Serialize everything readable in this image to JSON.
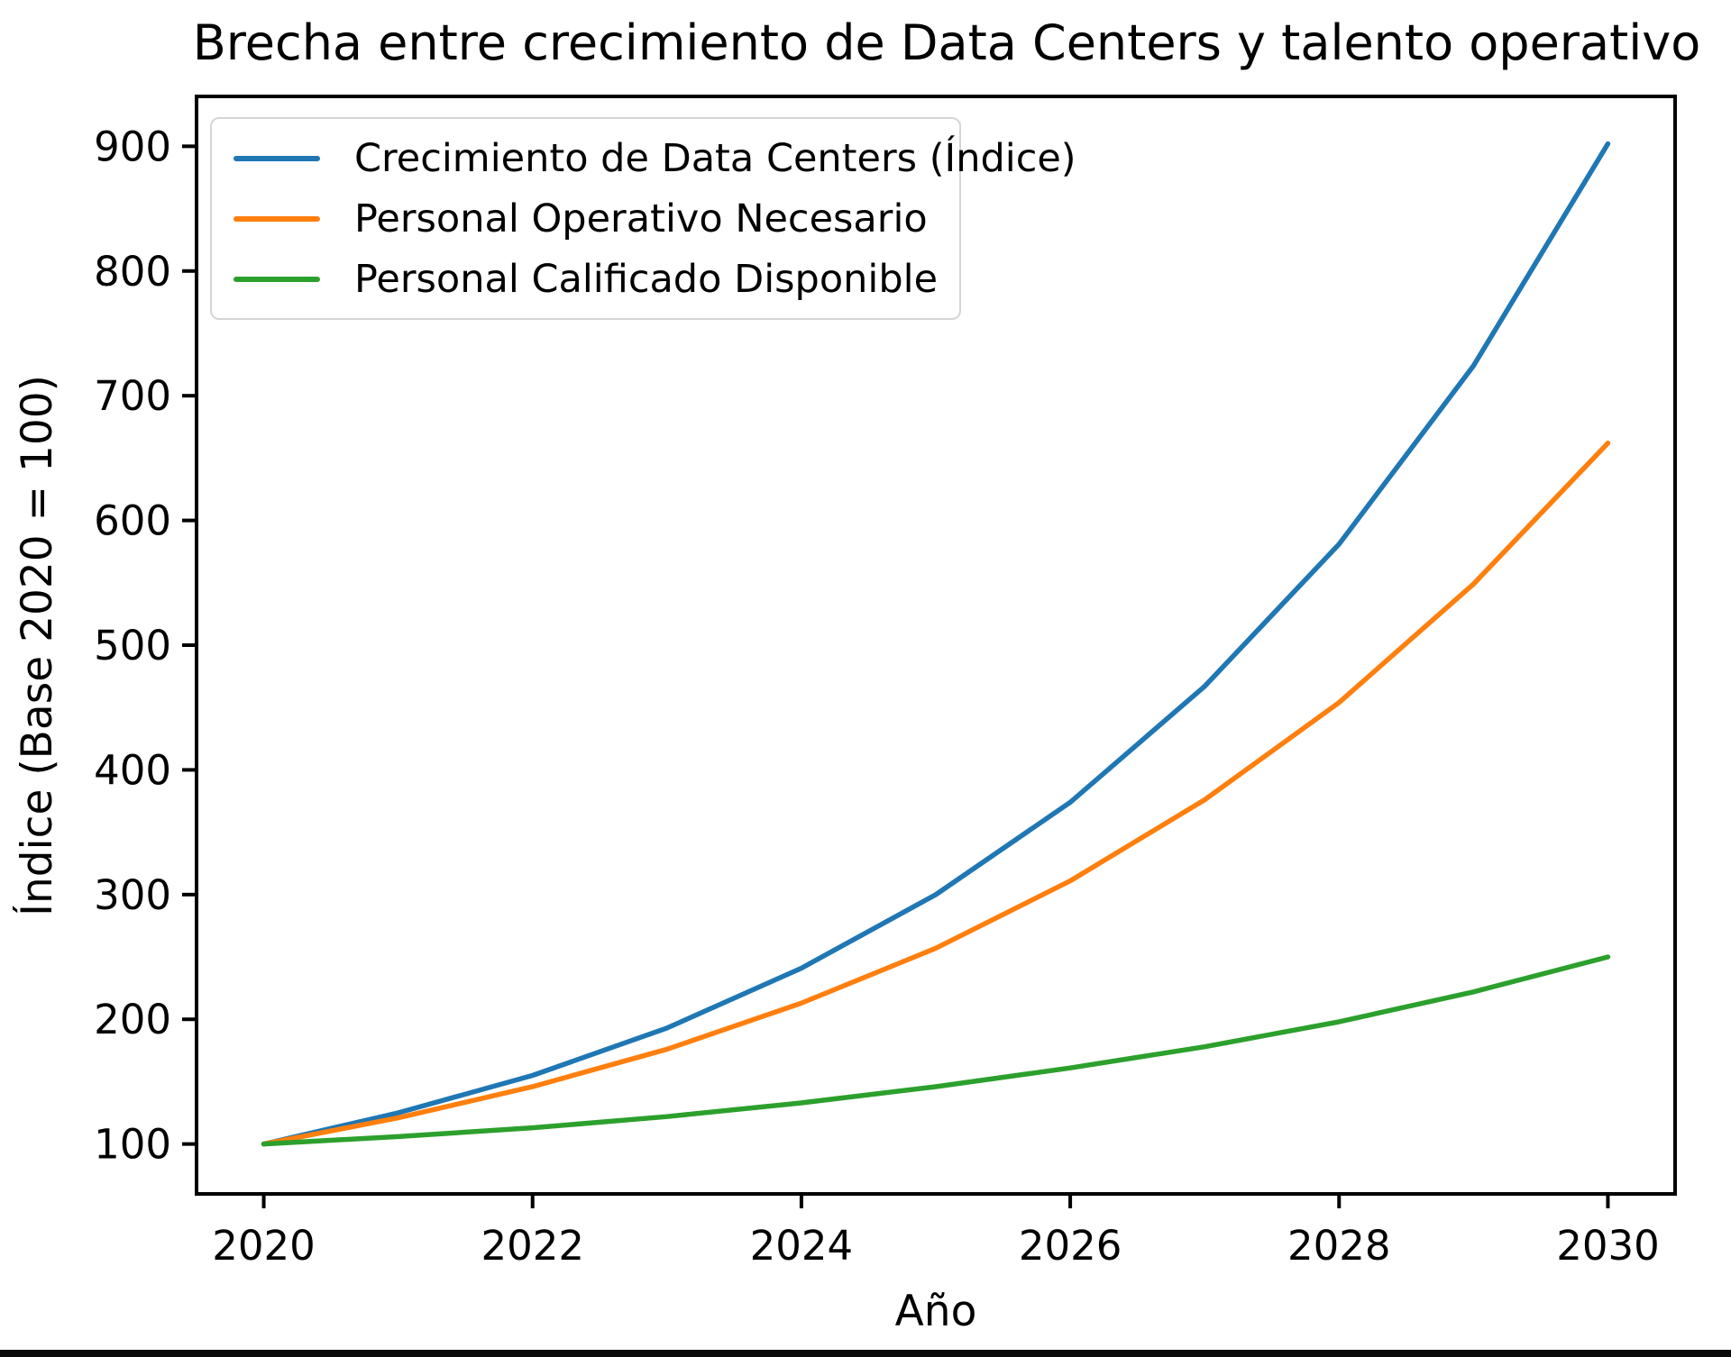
{
  "chart_data": {
    "type": "line",
    "title": "Brecha entre crecimiento de Data Centers y talento operativo",
    "xlabel": "Año",
    "ylabel": "Índice (Base 2020 = 100)",
    "x": [
      2020,
      2021,
      2022,
      2023,
      2024,
      2025,
      2026,
      2027,
      2028,
      2029,
      2030
    ],
    "series": [
      {
        "name": "Crecimiento de Data Centers (Índice)",
        "color": "#1f77b4",
        "values": [
          100,
          125,
          155,
          193,
          241,
          300,
          374,
          467,
          581,
          724,
          902
        ]
      },
      {
        "name": "Personal Operativo Necesario",
        "color": "#ff7f0e",
        "values": [
          100,
          121,
          146,
          176,
          213,
          257,
          311,
          376,
          454,
          549,
          662
        ]
      },
      {
        "name": "Personal Calificado Disponible",
        "color": "#2ca02c",
        "values": [
          100,
          106,
          113,
          122,
          133,
          146,
          161,
          178,
          198,
          222,
          250
        ]
      }
    ],
    "xticks": [
      2020,
      2022,
      2024,
      2026,
      2028,
      2030
    ],
    "yticks": [
      100,
      200,
      300,
      400,
      500,
      600,
      700,
      800,
      900
    ],
    "xlim": [
      2019.5,
      2030.5
    ],
    "ylim": [
      60,
      940
    ],
    "legend_position": "upper left",
    "grid": false,
    "line_width": 5.5,
    "axis_color": "#000000",
    "background_color": "#ffffff"
  }
}
